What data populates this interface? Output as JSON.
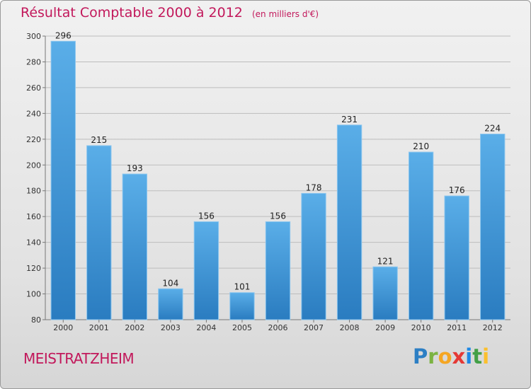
{
  "header": {
    "title": "Résultat Comptable 2000 à 2012",
    "unit": "(en milliers d'€)"
  },
  "footer": {
    "city": "MEISTRATZHEIM",
    "logo_text": "Proxiti",
    "logo_letters": [
      "P",
      "r",
      "o",
      "x",
      "i",
      "t",
      "i"
    ]
  },
  "colors": {
    "bar_top": "#5aaee8",
    "bar_bottom": "#2a7cc0",
    "accent": "#c2185b",
    "grid": "#bdbdbd",
    "axis_text": "#333333"
  },
  "chart_data": {
    "type": "bar",
    "title": "Résultat Comptable 2000 à 2012",
    "subtitle": "(en milliers d'€)",
    "xlabel": "",
    "ylabel": "",
    "categories": [
      "2000",
      "2001",
      "2002",
      "2003",
      "2004",
      "2005",
      "2006",
      "2007",
      "2008",
      "2009",
      "2010",
      "2011",
      "2012"
    ],
    "values": [
      296,
      215,
      193,
      104,
      156,
      101,
      156,
      178,
      231,
      121,
      210,
      176,
      224
    ],
    "ylim": [
      80,
      300
    ],
    "yticks": [
      80,
      100,
      120,
      140,
      160,
      180,
      200,
      220,
      240,
      260,
      280,
      300
    ],
    "grid": true,
    "data_labels": true
  }
}
